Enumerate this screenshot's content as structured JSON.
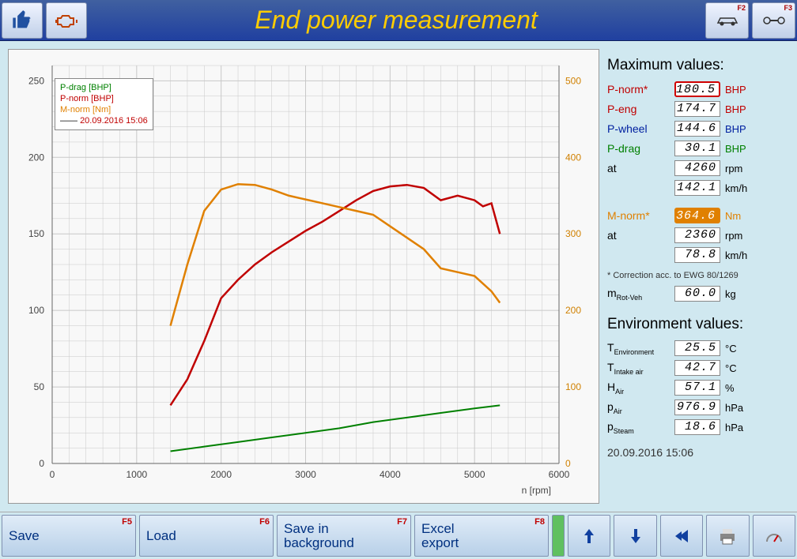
{
  "title": "End power measurement",
  "titlebar_keys": [
    "F2",
    "F3"
  ],
  "chart": {
    "type": "line",
    "xlabel": "n [rpm]",
    "xlim": [
      0,
      6000
    ],
    "xtick_step": 1000,
    "ylim_left": [
      0,
      260
    ],
    "ytick_left_step": 50,
    "ylim_right": [
      0,
      520
    ],
    "ytick_right_step": 100,
    "right_ticks": [
      0,
      100,
      200,
      300,
      400,
      500
    ],
    "background_color": "#f8f8f8",
    "grid_color": "#c8c8c8",
    "minor_grid": true,
    "series": [
      {
        "name": "P-drag [BHP]",
        "color": "#008000",
        "width": 2,
        "axis": "left",
        "points": [
          [
            1400,
            8
          ],
          [
            1800,
            11
          ],
          [
            2200,
            14
          ],
          [
            2600,
            17
          ],
          [
            3000,
            20
          ],
          [
            3400,
            23
          ],
          [
            3800,
            27
          ],
          [
            4200,
            30
          ],
          [
            4600,
            33
          ],
          [
            5000,
            36
          ],
          [
            5300,
            38
          ]
        ]
      },
      {
        "name": "P-norm [BHP]",
        "color": "#c00000",
        "width": 2.5,
        "axis": "left",
        "points": [
          [
            1400,
            38
          ],
          [
            1600,
            55
          ],
          [
            1800,
            80
          ],
          [
            2000,
            108
          ],
          [
            2200,
            120
          ],
          [
            2400,
            130
          ],
          [
            2600,
            138
          ],
          [
            2800,
            145
          ],
          [
            3000,
            152
          ],
          [
            3200,
            158
          ],
          [
            3400,
            165
          ],
          [
            3600,
            172
          ],
          [
            3800,
            178
          ],
          [
            4000,
            181
          ],
          [
            4200,
            182
          ],
          [
            4400,
            180
          ],
          [
            4600,
            172
          ],
          [
            4800,
            175
          ],
          [
            5000,
            172
          ],
          [
            5100,
            168
          ],
          [
            5200,
            170
          ],
          [
            5300,
            150
          ]
        ]
      },
      {
        "name": "M-norm [Nm]",
        "color": "#e08000",
        "width": 2.5,
        "axis": "right",
        "points": [
          [
            1400,
            180
          ],
          [
            1600,
            260
          ],
          [
            1800,
            330
          ],
          [
            2000,
            358
          ],
          [
            2200,
            365
          ],
          [
            2400,
            364
          ],
          [
            2600,
            358
          ],
          [
            2800,
            350
          ],
          [
            3000,
            345
          ],
          [
            3200,
            340
          ],
          [
            3400,
            335
          ],
          [
            3600,
            330
          ],
          [
            3800,
            325
          ],
          [
            4000,
            310
          ],
          [
            4200,
            295
          ],
          [
            4400,
            280
          ],
          [
            4600,
            255
          ],
          [
            4800,
            250
          ],
          [
            5000,
            245
          ],
          [
            5200,
            225
          ],
          [
            5300,
            210
          ]
        ]
      }
    ],
    "legend_date": "20.09.2016 15:06"
  },
  "max_values_header": "Maximum values:",
  "max_values": [
    {
      "label": "P-norm*",
      "value": "180.5",
      "unit": "BHP",
      "class": "red",
      "box": "box-red"
    },
    {
      "label": "P-eng",
      "value": "174.7",
      "unit": "BHP",
      "class": "red",
      "box": ""
    },
    {
      "label": "P-wheel",
      "value": "144.6",
      "unit": "BHP",
      "class": "blue",
      "box": ""
    },
    {
      "label": "P-drag",
      "value": "30.1",
      "unit": "BHP",
      "class": "green",
      "box": ""
    },
    {
      "label": "at",
      "value": "4260",
      "unit": "rpm",
      "class": "",
      "box": ""
    },
    {
      "label": "",
      "value": "142.1",
      "unit": "km/h",
      "class": "",
      "box": ""
    }
  ],
  "max_values2": [
    {
      "label": "M-norm*",
      "value": "364.6",
      "unit": "Nm",
      "class": "orange",
      "box": "box-orange"
    },
    {
      "label": "at",
      "value": "2360",
      "unit": "rpm",
      "class": "",
      "box": ""
    },
    {
      "label": "",
      "value": "78.8",
      "unit": "km/h",
      "class": "",
      "box": ""
    }
  ],
  "correction_note": "* Correction acc. to EWG 80/1269",
  "mrot": {
    "label": "m",
    "sub": "Rot-Veh",
    "value": "60.0",
    "unit": "kg"
  },
  "env_header": "Environment values:",
  "env_values": [
    {
      "label": "T",
      "sub": "Environment",
      "value": "25.5",
      "unit": "°C"
    },
    {
      "label": "T",
      "sub": "Intake air",
      "value": "42.7",
      "unit": "°C"
    },
    {
      "label": "H",
      "sub": "Air",
      "value": "57.1",
      "unit": "%"
    },
    {
      "label": "p",
      "sub": "Air",
      "value": "976.9",
      "unit": "hPa"
    },
    {
      "label": "p",
      "sub": "Steam",
      "value": "18.6",
      "unit": "hPa"
    }
  ],
  "timestamp": "20.09.2016  15:06",
  "footer": [
    {
      "label": "Save",
      "key": "F5"
    },
    {
      "label": "Load",
      "key": "F6"
    },
    {
      "label": "Save in\nbackground",
      "key": "F7"
    },
    {
      "label": "Excel\nexport",
      "key": "F8"
    }
  ]
}
